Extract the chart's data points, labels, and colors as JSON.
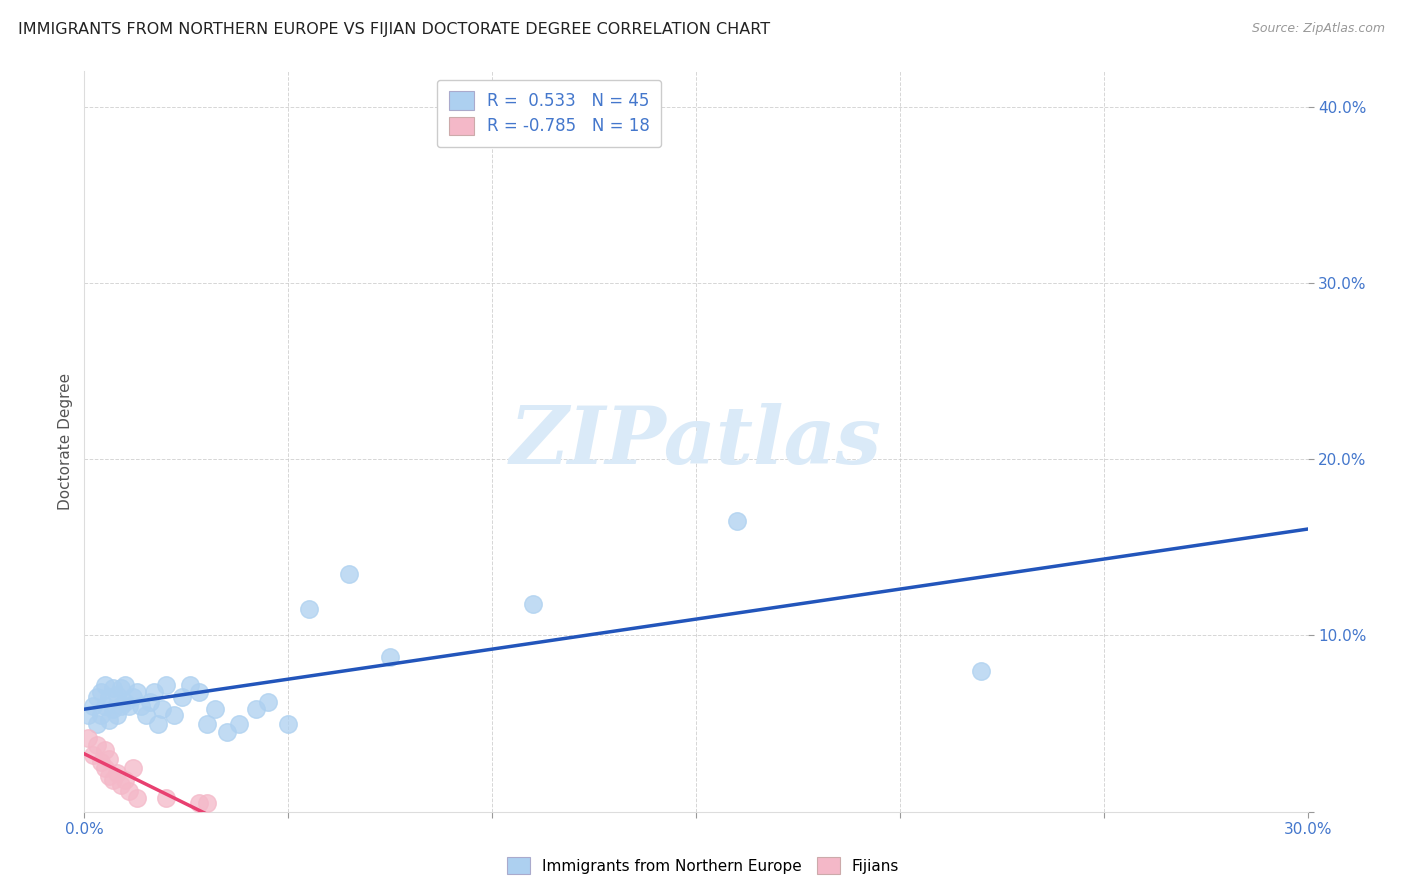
{
  "title": "IMMIGRANTS FROM NORTHERN EUROPE VS FIJIAN DOCTORATE DEGREE CORRELATION CHART",
  "source": "Source: ZipAtlas.com",
  "ylabel": "Doctorate Degree",
  "xlim": [
    0.0,
    0.3
  ],
  "ylim": [
    0.0,
    0.42
  ],
  "xticks": [
    0.0,
    0.05,
    0.1,
    0.15,
    0.2,
    0.25,
    0.3
  ],
  "xtick_labels": [
    "0.0%",
    "",
    "",
    "",
    "",
    "",
    "30.0%"
  ],
  "yticks": [
    0.0,
    0.1,
    0.2,
    0.3,
    0.4
  ],
  "ytick_labels": [
    "",
    "10.0%",
    "20.0%",
    "30.0%",
    "40.0%"
  ],
  "blue_R": 0.533,
  "blue_N": 45,
  "pink_R": -0.785,
  "pink_N": 18,
  "blue_color": "#add0f0",
  "pink_color": "#f4b8c8",
  "blue_line_color": "#2255bb",
  "pink_line_color": "#e84070",
  "tick_color": "#4477cc",
  "background_color": "#ffffff",
  "grid_color": "#cccccc",
  "blue_x": [
    0.001,
    0.002,
    0.003,
    0.003,
    0.004,
    0.004,
    0.005,
    0.005,
    0.006,
    0.006,
    0.007,
    0.007,
    0.008,
    0.008,
    0.009,
    0.009,
    0.01,
    0.01,
    0.011,
    0.012,
    0.013,
    0.014,
    0.015,
    0.016,
    0.017,
    0.018,
    0.019,
    0.02,
    0.022,
    0.024,
    0.026,
    0.028,
    0.03,
    0.032,
    0.035,
    0.038,
    0.042,
    0.045,
    0.05,
    0.055,
    0.065,
    0.075,
    0.11,
    0.16,
    0.22
  ],
  "blue_y": [
    0.055,
    0.06,
    0.05,
    0.065,
    0.055,
    0.068,
    0.06,
    0.072,
    0.052,
    0.065,
    0.058,
    0.07,
    0.055,
    0.066,
    0.06,
    0.07,
    0.062,
    0.072,
    0.06,
    0.065,
    0.068,
    0.06,
    0.055,
    0.062,
    0.068,
    0.05,
    0.058,
    0.072,
    0.055,
    0.065,
    0.072,
    0.068,
    0.05,
    0.058,
    0.045,
    0.05,
    0.058,
    0.062,
    0.05,
    0.115,
    0.135,
    0.088,
    0.118,
    0.165,
    0.08
  ],
  "pink_x": [
    0.001,
    0.002,
    0.003,
    0.004,
    0.005,
    0.005,
    0.006,
    0.006,
    0.007,
    0.008,
    0.009,
    0.01,
    0.011,
    0.012,
    0.013,
    0.02,
    0.028,
    0.03
  ],
  "pink_y": [
    0.042,
    0.032,
    0.038,
    0.028,
    0.035,
    0.025,
    0.03,
    0.02,
    0.018,
    0.022,
    0.015,
    0.018,
    0.012,
    0.025,
    0.008,
    0.008,
    0.005,
    0.005
  ],
  "legend_title_blue": "Immigrants from Northern Europe",
  "legend_title_pink": "Fijians"
}
